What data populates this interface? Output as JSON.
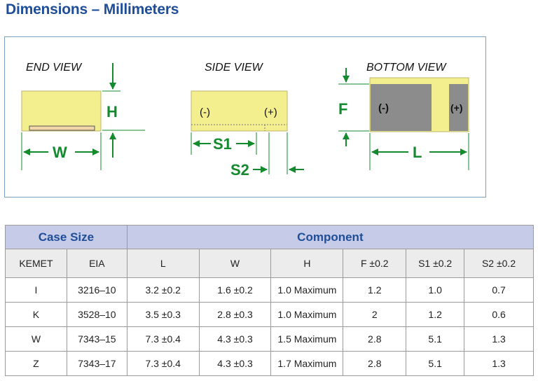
{
  "page_title": "Dimensions – Millimeters",
  "diagram": {
    "end_view_label": "END VIEW",
    "side_view_label": "SIDE VIEW",
    "bottom_view_label": "BOTTOM VIEW",
    "dim_h": "H",
    "dim_w": "W",
    "dim_s1": "S1",
    "dim_s2": "S2",
    "dim_f": "F",
    "dim_l": "L",
    "side_neg": "(-)",
    "side_pos": "(+)",
    "bottom_neg": "(-)",
    "bottom_pos": "(+)",
    "colors": {
      "body": "#f3ef8f",
      "terminal": "#8c8c8c",
      "dimension": "#138a2e"
    }
  },
  "table": {
    "group_headers": {
      "case_size": "Case Size",
      "component": "Component"
    },
    "columns": [
      "KEMET",
      "EIA",
      "L",
      "W",
      "H",
      "F ±0.2",
      "S1 ±0.2",
      "S2 ±0.2"
    ],
    "rows": [
      [
        "I",
        "3216–10",
        "3.2 ±0.2",
        "1.6 ±0.2",
        "1.0 Maximum",
        "1.2",
        "1.0",
        "0.7"
      ],
      [
        "K",
        "3528–10",
        "3.5 ±0.3",
        "2.8 ±0.3",
        "1.0 Maximum",
        "2",
        "1.2",
        "0.6"
      ],
      [
        "W",
        "7343–15",
        "7.3 ±0.4",
        "4.3 ±0.3",
        "1.5 Maximum",
        "2.8",
        "5.1",
        "1.3"
      ],
      [
        "Z",
        "7343–17",
        "7.3 ±0.4",
        "4.3 ±0.3",
        "1.7 Maximum",
        "2.8",
        "5.1",
        "1.3"
      ]
    ]
  }
}
